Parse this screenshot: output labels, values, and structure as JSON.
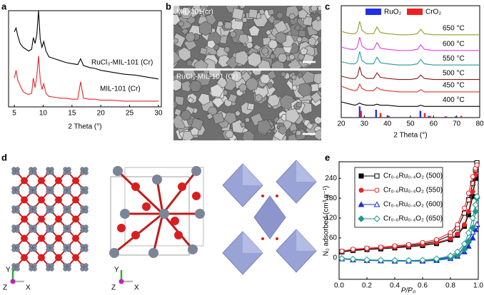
{
  "chart_data": [
    {
      "type": "line",
      "panel": "a",
      "xlabel": "2 Theta (°)",
      "xlim": [
        4,
        30.5
      ],
      "xticks": [
        5,
        10,
        15,
        20,
        25,
        30
      ],
      "ylim": [
        0,
        100
      ],
      "x": [
        5,
        5.3,
        5.6,
        6,
        6.5,
        7,
        7.5,
        8,
        8.3,
        8.6,
        8.9,
        9.2,
        9.5,
        9.8,
        10.1,
        10.5,
        11,
        12,
        13,
        14,
        15,
        16,
        16.5,
        17,
        18,
        19,
        20,
        22,
        24,
        26,
        28,
        30
      ],
      "series": [
        {
          "name": "RuCl₃-MIL-101 (Cr)",
          "color": "#000000",
          "values": [
            78,
            82,
            74,
            66,
            62,
            60,
            58,
            60,
            72,
            66,
            75,
            100,
            70,
            62,
            68,
            58,
            52,
            50,
            48,
            46,
            45,
            44,
            50,
            43,
            41,
            40,
            38,
            36,
            34,
            33,
            31,
            29
          ]
        },
        {
          "name": "MIL-101 (Cr)",
          "color": "#e8262a",
          "values": [
            30,
            38,
            28,
            22,
            16,
            14,
            13,
            14,
            30,
            20,
            32,
            53,
            28,
            18,
            24,
            14,
            11,
            10,
            9,
            9,
            8,
            8,
            26,
            9,
            8,
            8,
            7,
            7,
            6,
            6,
            6,
            6
          ]
        }
      ]
    },
    {
      "type": "line",
      "panel": "c",
      "xlabel": "2 Theta (°)",
      "xlim": [
        20,
        80
      ],
      "xticks": [
        20,
        30,
        40,
        50,
        60,
        70,
        80
      ],
      "ylim": [
        0,
        100
      ],
      "x": [
        20,
        24,
        26,
        27,
        28,
        29,
        31,
        34,
        35.5,
        37,
        40,
        45,
        50,
        53,
        54.5,
        56,
        60,
        65,
        70,
        75,
        80
      ],
      "series": [
        {
          "name": "650 °C",
          "color": "#9a9a2a",
          "values": [
            77,
            75,
            75,
            77,
            86,
            78,
            75,
            75,
            81,
            76,
            75,
            74,
            74,
            75,
            79,
            75,
            74,
            74,
            74,
            74,
            74
          ]
        },
        {
          "name": "600 °C",
          "color": "#e040e0",
          "values": [
            63,
            61,
            61,
            63,
            72,
            64,
            61,
            61,
            67,
            62,
            61,
            60,
            60,
            61,
            65,
            61,
            60,
            60,
            60,
            60,
            60
          ]
        },
        {
          "name": "550 °C",
          "color": "#2a9a9a",
          "values": [
            50,
            48,
            48,
            50,
            59,
            51,
            48,
            48,
            54,
            49,
            48,
            47,
            47,
            48,
            52,
            48,
            47,
            47,
            47,
            47,
            47
          ]
        },
        {
          "name": "500 °C",
          "color": "#8b1a1a",
          "values": [
            37,
            35,
            35,
            37,
            45,
            38,
            35,
            35,
            40,
            36,
            35,
            34,
            34,
            35,
            38,
            35,
            34,
            34,
            34,
            34,
            34
          ]
        },
        {
          "name": "450 °C",
          "color": "#e03030",
          "values": [
            28,
            25,
            24,
            25,
            30,
            26,
            24,
            24,
            27,
            25,
            24,
            23,
            23,
            23,
            25,
            23,
            23,
            23,
            23,
            23,
            23
          ]
        },
        {
          "name": "400 °C",
          "color": "#000000",
          "values": [
            14,
            12,
            11,
            12,
            13,
            12,
            11,
            11,
            12,
            11,
            11,
            10,
            10,
            10,
            11,
            10,
            10,
            10,
            10,
            10,
            10
          ]
        }
      ],
      "references": [
        {
          "name": "RuO₂",
          "color": "#1f2ff0",
          "x": [
            28.0,
            35.1,
            40.1,
            54.3,
            57.9,
            65.5,
            69.5
          ],
          "values": [
            10,
            7,
            2,
            6,
            1.5,
            1,
            1
          ]
        },
        {
          "name": "CrO₂",
          "color": "#f02020",
          "x": [
            28.6,
            37.0,
            40.7,
            56.2,
            58.5,
            65.0,
            72.0
          ],
          "values": [
            6,
            4,
            1.5,
            4,
            1.5,
            1,
            1.5
          ]
        }
      ]
    },
    {
      "type": "line",
      "panel": "e",
      "xlabel": "P/P₀",
      "ylabel": "N₂ adsorbed (cm³ g⁻¹)",
      "xlim": [
        0,
        1
      ],
      "xticks": [
        {
          "value": 0,
          "label": "0.0"
        },
        0.2,
        0.4,
        0.6,
        0.8,
        {
          "value": 1,
          "label": "1.0"
        }
      ],
      "ylim": [
        -65,
        290
      ],
      "yticks": [
        0,
        60,
        120,
        180,
        240
      ],
      "x": [
        0.02,
        0.1,
        0.2,
        0.3,
        0.4,
        0.5,
        0.6,
        0.7,
        0.8,
        0.85,
        0.9,
        0.93,
        0.96,
        0.98,
        0.99
      ],
      "series": [
        {
          "name": "Cr₀.₆Ru₀.₄O₂ (500)",
          "color": "#000000",
          "marker": "square",
          "values": [
            18,
            22,
            25,
            27,
            30,
            33,
            37,
            43,
            55,
            68,
            95,
            130,
            185,
            240,
            285
          ],
          "desorption_values": [
            18,
            23,
            27,
            30,
            33,
            37,
            42,
            50,
            68,
            90,
            135,
            175,
            225,
            265,
            287
          ]
        },
        {
          "name": "Cr₀.₆Ru₀.₄O₂ (550)",
          "color": "#e8262a",
          "marker": "circle",
          "values": [
            20,
            25,
            27,
            30,
            32,
            35,
            40,
            46,
            58,
            72,
            100,
            140,
            200,
            250,
            278
          ],
          "desorption_values": [
            20,
            26,
            29,
            32,
            36,
            40,
            46,
            55,
            76,
            100,
            150,
            195,
            245,
            270,
            280
          ]
        },
        {
          "name": "Cr₀.₆Ru₀.₄O₂ (600)",
          "color": "#1f2fd0",
          "marker": "triangle",
          "values": [
            -3,
            -6,
            -8,
            -9,
            -10,
            -10,
            -10,
            -8,
            -2,
            5,
            18,
            35,
            60,
            85,
            100
          ],
          "desorption_values": [
            -3,
            -5,
            -7,
            -8,
            -9,
            -9,
            -8,
            -5,
            3,
            12,
            30,
            52,
            78,
            95,
            102
          ]
        },
        {
          "name": "Cr₀.₆Ru₀.₄O₂ (650)",
          "color": "#1a9a8a",
          "marker": "diamond",
          "values": [
            -2,
            -5,
            -7,
            -8,
            -9,
            -9,
            -8,
            -6,
            0,
            8,
            25,
            50,
            90,
            140,
            180
          ],
          "desorption_values": [
            -2,
            -4,
            -6,
            -7,
            -8,
            -8,
            -7,
            -3,
            6,
            18,
            42,
            75,
            120,
            160,
            185
          ]
        }
      ]
    }
  ],
  "images": [
    {
      "panel": "b",
      "captions": [
        "MIL-101(cr)",
        "RuCl₃-MIL-101 (Cr)"
      ]
    },
    {
      "panel": "d",
      "axis_labels": [
        "Y",
        "Z",
        "X",
        "Y",
        "Z",
        "X"
      ]
    }
  ]
}
